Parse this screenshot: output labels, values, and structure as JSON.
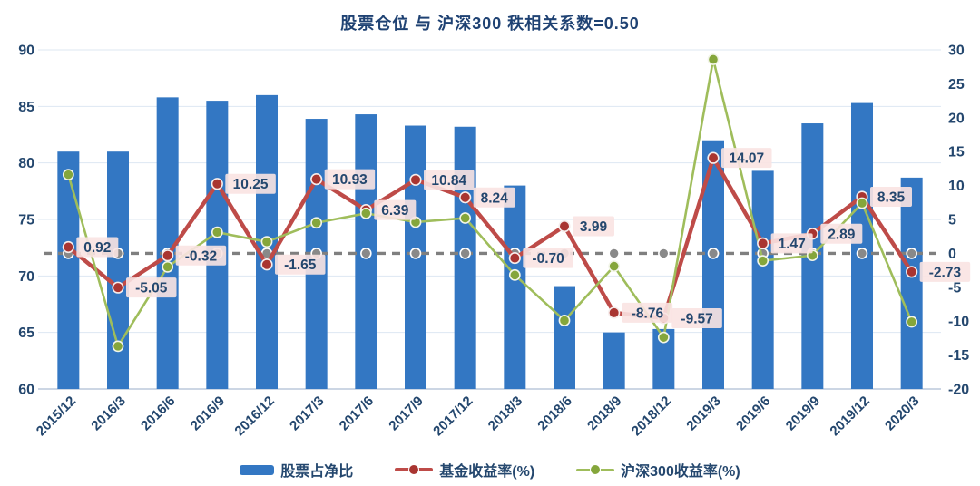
{
  "title": "股票仓位 与 沪深300 秩相关系数=0.50",
  "chart_data": {
    "type": "combo-bar-line",
    "title": "股票仓位 与 沪深300 秩相关系数=0.50",
    "categories": [
      "2015/12",
      "2016/3",
      "2016/6",
      "2016/9",
      "2016/12",
      "2017/3",
      "2017/6",
      "2017/9",
      "2017/12",
      "2018/3",
      "2018/6",
      "2018/9",
      "2018/12",
      "2019/3",
      "2019/6",
      "2019/9",
      "2019/12",
      "2020/3"
    ],
    "left_axis": {
      "min": 60,
      "max": 90,
      "step": 5,
      "ticks": [
        "90",
        "85",
        "80",
        "75",
        "70",
        "65",
        "60"
      ]
    },
    "right_axis": {
      "min": -20,
      "max": 30,
      "step": 5,
      "ticks": [
        "30",
        "25",
        "20",
        "15",
        "10",
        "5",
        "0",
        "-5",
        "-10",
        "-15",
        "-20"
      ]
    },
    "series": [
      {
        "name": "股票占净比",
        "type": "bar",
        "axis": "left",
        "color": "#3377C3",
        "values": [
          81.0,
          81.0,
          85.8,
          85.5,
          86.0,
          83.9,
          84.3,
          83.3,
          83.2,
          78.0,
          69.1,
          65.0,
          65.3,
          82.0,
          79.3,
          83.5,
          85.3,
          78.7
        ]
      },
      {
        "name": "基金收益率(%)",
        "type": "line",
        "axis": "right",
        "color": "#BE4B48",
        "marker_color": "#A93531",
        "values": [
          0.92,
          -5.05,
          -0.32,
          10.25,
          -1.65,
          10.93,
          6.39,
          10.84,
          8.24,
          -0.7,
          3.99,
          -8.76,
          -9.57,
          14.07,
          1.47,
          2.89,
          8.35,
          -2.73
        ],
        "data_labels": [
          "0.92",
          "-5.05",
          "-0.32",
          "10.25",
          "-1.65",
          "10.93",
          "6.39",
          "10.84",
          "8.24",
          "-0.70",
          "3.99",
          "-8.76",
          "-9.57",
          "14.07",
          "1.47",
          "2.89",
          "8.35",
          "-2.73"
        ]
      },
      {
        "name": "沪深300收益率(%)",
        "type": "line",
        "axis": "right",
        "color": "#9FBD5B",
        "marker_color": "#85A63B",
        "values": [
          11.6,
          -13.7,
          -2.0,
          3.1,
          1.7,
          4.5,
          5.9,
          4.6,
          5.2,
          -3.2,
          -9.9,
          -1.9,
          -12.4,
          28.6,
          -1.1,
          -0.3,
          7.4,
          -10.1
        ]
      }
    ],
    "zero_line": {
      "value": 0,
      "style": "dashed",
      "color": "#7F7F7F",
      "marker_color": "#898989"
    },
    "grid": true,
    "legend_position": "bottom",
    "colors": {
      "background": "#FFFFFF",
      "grid": "#DDE7F2",
      "axis_line": "#BCC9DB",
      "axis_text": "#24476E",
      "title_text": "#1F4273",
      "label_bg": "#F9E3E2",
      "label_text": "#24476E"
    }
  }
}
